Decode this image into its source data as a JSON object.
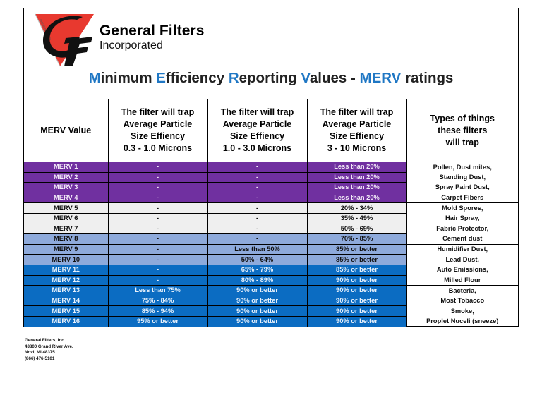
{
  "company": {
    "name": "General Filters",
    "subtitle": "Incorporated",
    "logo_letters": "GF",
    "logo_side_text": "INCORPORATED"
  },
  "title": {
    "parts": [
      {
        "text": "M",
        "accent": true
      },
      {
        "text": "inimum ",
        "accent": false
      },
      {
        "text": "E",
        "accent": true
      },
      {
        "text": "fficiency ",
        "accent": false
      },
      {
        "text": "R",
        "accent": true
      },
      {
        "text": "eporting ",
        "accent": false
      },
      {
        "text": "V",
        "accent": true
      },
      {
        "text": "alues - ",
        "accent": false
      },
      {
        "text": "MERV",
        "accent": true
      },
      {
        "text": " ratings",
        "accent": false
      }
    ]
  },
  "colors": {
    "accent": "#1f77c4",
    "logo_red": "#e8392f",
    "purple": "#7030a0",
    "gray": "#efefef",
    "light_blue": "#8eaadb",
    "blue": "#0b6cc2"
  },
  "table": {
    "headers": [
      {
        "lines": [
          "MERV Value"
        ]
      },
      {
        "lines": [
          "The filter will trap",
          "Average Particle",
          "Size Effiency",
          "0.3 - 1.0 Microns"
        ]
      },
      {
        "lines": [
          "The filter will trap",
          "Average Particle",
          "Size Effiency",
          "1.0 - 3.0 Microns"
        ]
      },
      {
        "lines": [
          "The filter will trap",
          "Average Particle",
          "Size Effiency",
          "3 - 10 Microns"
        ]
      },
      {
        "lines": [
          "Types of things",
          "these filters",
          "will trap"
        ]
      }
    ],
    "rows": [
      {
        "merv": "MERV 1",
        "r1": "-",
        "r2": "-",
        "r3": "Less than 20%",
        "types": "Pollen, Dust mites,",
        "band": "purple"
      },
      {
        "merv": "MERV 2",
        "r1": "-",
        "r2": "-",
        "r3": "Less than 20%",
        "types": "Standing Dust,",
        "band": "purple"
      },
      {
        "merv": "MERV 3",
        "r1": "-",
        "r2": "-",
        "r3": "Less than 20%",
        "types": "Spray Paint Dust,",
        "band": "purple"
      },
      {
        "merv": "MERV 4",
        "r1": "-",
        "r2": "-",
        "r3": "Less than 20%",
        "types": "Carpet Fibers",
        "band": "purple"
      },
      {
        "merv": "MERV 5",
        "r1": "-",
        "r2": "-",
        "r3": "20% - 34%",
        "types": "Mold Spores,",
        "band": "gray"
      },
      {
        "merv": "MERV 6",
        "r1": "-",
        "r2": "-",
        "r3": "35% - 49%",
        "types": "Hair Spray,",
        "band": "gray"
      },
      {
        "merv": "MERV 7",
        "r1": "-",
        "r2": "-",
        "r3": "50% - 69%",
        "types": "Fabric Protector,",
        "band": "gray"
      },
      {
        "merv": "MERV 8",
        "r1": "-",
        "r2": "-",
        "r3": "70% - 85%",
        "types": "Cement dust",
        "band": "lightblue"
      },
      {
        "merv": "MERV 9",
        "r1": "-",
        "r2": "Less than 50%",
        "r3": "85% or better",
        "types": "Humidifier Dust,",
        "band": "lightblue"
      },
      {
        "merv": "MERV 10",
        "r1": "-",
        "r2": "50% - 64%",
        "r3": "85% or better",
        "types": "Lead Dust,",
        "band": "lightblue"
      },
      {
        "merv": "MERV 11",
        "r1": "-",
        "r2": "65% - 79%",
        "r3": "85% or better",
        "types": "Auto Emissions,",
        "band": "blue"
      },
      {
        "merv": "MERV 12",
        "r1": "-",
        "r2": "80% - 89%",
        "r3": "90% or better",
        "types": "Milled Flour",
        "band": "blue"
      },
      {
        "merv": "MERV 13",
        "r1": "Less than 75%",
        "r2": "90% or better",
        "r3": "90% or better",
        "types": "Bacteria,",
        "band": "blue"
      },
      {
        "merv": "MERV 14",
        "r1": "75% - 84%",
        "r2": "90% or better",
        "r3": "90% or better",
        "types": "Most Tobacco",
        "band": "blue"
      },
      {
        "merv": "MERV 15",
        "r1": "85% - 94%",
        "r2": "90% or better",
        "r3": "90% or better",
        "types": "Smoke,",
        "band": "blue"
      },
      {
        "merv": "MERV 16",
        "r1": "95% or better",
        "r2": "90% or better",
        "r3": "90% or better",
        "types": "Proplet Nuceli (sneeze)",
        "band": "blue"
      }
    ]
  },
  "footer": {
    "lines": [
      "General Filters, Inc.",
      "43800 Grand River Ave.",
      "Novi, MI  48375",
      "(866) 476-5101"
    ]
  }
}
